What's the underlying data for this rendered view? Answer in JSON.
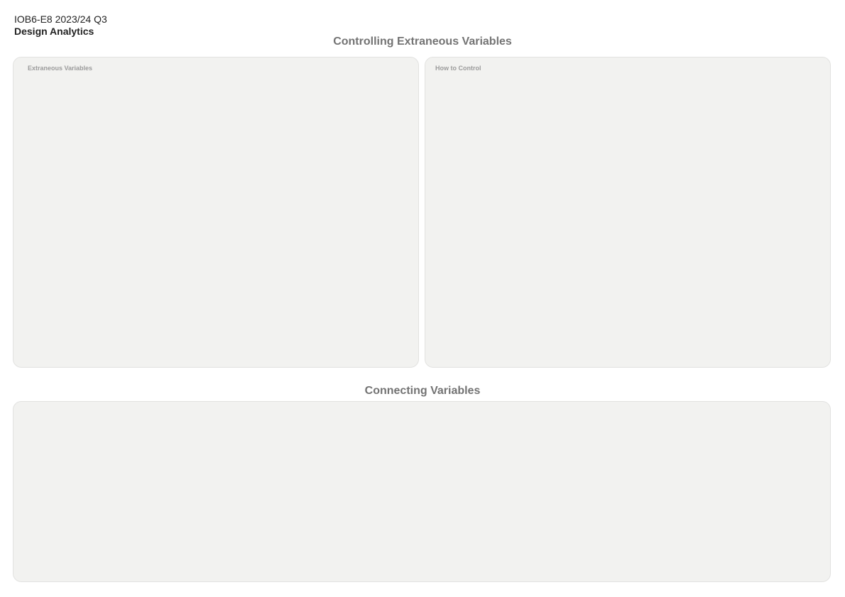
{
  "header": {
    "course_code": "IOB6-E8 2023/24 Q3",
    "course_name": "Design Analytics"
  },
  "sections": {
    "controlling": {
      "title": "Controlling Extraneous Variables",
      "panels": {
        "extraneous": {
          "label": "Extraneous Variables"
        },
        "how_to_control": {
          "label": "How to Control"
        }
      }
    },
    "connecting": {
      "title": "Connecting Variables"
    }
  }
}
